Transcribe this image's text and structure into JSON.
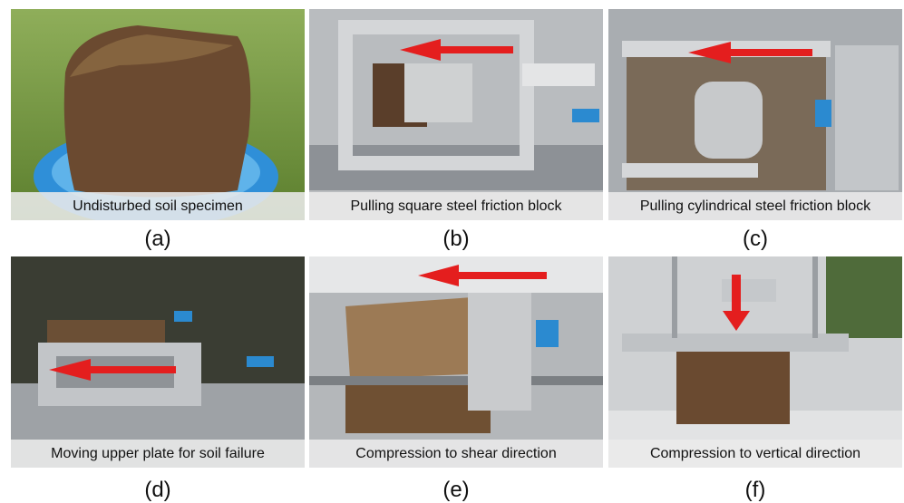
{
  "panels": [
    {
      "caption": "Undisturbed soil specimen",
      "label": "(a)"
    },
    {
      "caption": "Pulling square steel friction block",
      "label": "(b)"
    },
    {
      "caption": "Pulling cylindrical steel friction block",
      "label": "(c)"
    },
    {
      "caption": "Moving upper plate for soil failure",
      "label": "(d)"
    },
    {
      "caption": "Compression to shear direction",
      "label": "(e)"
    },
    {
      "caption": "Compression to vertical direction",
      "label": "(f)"
    }
  ]
}
